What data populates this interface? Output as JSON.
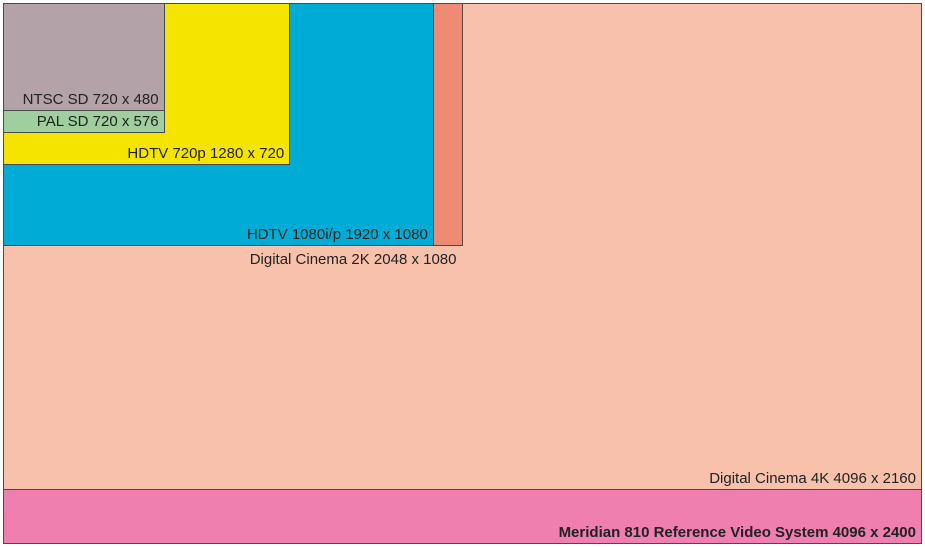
{
  "formats": [
    {
      "id": "meridian",
      "label": "Meridian 810 Reference Video System 4096 x 2400",
      "width": 4096,
      "height": 2400,
      "color": "#ee7fae",
      "bold": true
    },
    {
      "id": "dc4k",
      "label": "Digital Cinema 4K 4096 x 2160",
      "width": 4096,
      "height": 2160,
      "color": "#f7c1ac",
      "bold": false
    },
    {
      "id": "dc2k",
      "label": "Digital Cinema 2K 2048 x 1080",
      "width": 2048,
      "height": 1080,
      "color": "#ef8a75",
      "bold": false
    },
    {
      "id": "hdtv1080",
      "label": "HDTV 1080i/p 1920 x 1080",
      "width": 1920,
      "height": 1080,
      "color": "#00acd5",
      "bold": false
    },
    {
      "id": "hdtv720",
      "label": "HDTV 720p 1280 x 720",
      "width": 1280,
      "height": 720,
      "color": "#f4e400",
      "bold": false
    },
    {
      "id": "pal",
      "label": "PAL SD 720 x 576",
      "width": 720,
      "height": 576,
      "color": "#9fcf9e",
      "bold": false
    },
    {
      "id": "ntsc",
      "label": "NTSC SD 720 x 480",
      "width": 720,
      "height": 480,
      "color": "#b4a2a9",
      "bold": false
    }
  ]
}
